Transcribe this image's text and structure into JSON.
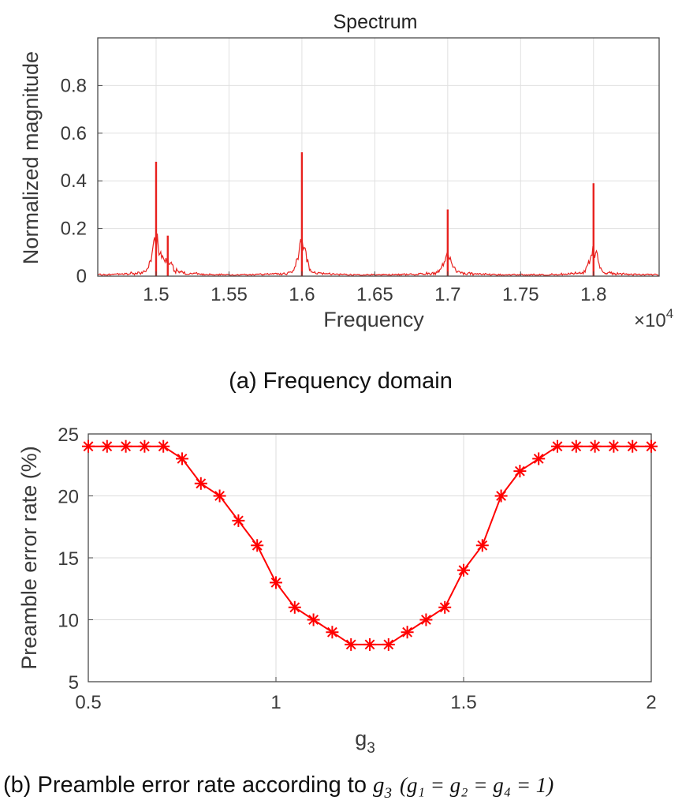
{
  "chart_data": [
    {
      "type": "line",
      "title": "Spectrum",
      "xlabel": "Frequency",
      "ylabel": "Normalized magnitude",
      "x_exponent_label": "×10",
      "x_exponent": "4",
      "xlim": [
        1.46,
        1.845
      ],
      "ylim": [
        0,
        1.0
      ],
      "x_ticks": [
        1.5,
        1.55,
        1.6,
        1.65,
        1.7,
        1.75,
        1.8
      ],
      "x_tick_labels": [
        "1.5",
        "1.55",
        "1.6",
        "1.65",
        "1.7",
        "1.75",
        "1.8"
      ],
      "y_ticks": [
        0,
        0.2,
        0.4,
        0.6,
        0.8
      ],
      "y_tick_labels": [
        "0",
        "0.2",
        "0.4",
        "0.6",
        "0.8"
      ],
      "grid": true,
      "color": "#e8211e",
      "peaks": [
        {
          "x": 1.5,
          "y": 0.48
        },
        {
          "x": 1.508,
          "y": 0.17
        },
        {
          "x": 1.6,
          "y": 0.52
        },
        {
          "x": 1.7,
          "y": 0.28
        },
        {
          "x": 1.8,
          "y": 0.39
        }
      ],
      "caption": "(a) Frequency domain"
    },
    {
      "type": "line",
      "xlabel": "g",
      "xlabel_sub": "3",
      "ylabel": "Preamble error rate (%)",
      "xlim": [
        0.5,
        2
      ],
      "ylim": [
        5,
        25
      ],
      "x_ticks": [
        0.5,
        1,
        1.5,
        2
      ],
      "x_tick_labels": [
        "0.5",
        "1",
        "1.5",
        "2"
      ],
      "y_ticks": [
        5,
        10,
        15,
        20,
        25
      ],
      "y_tick_labels": [
        "5",
        "10",
        "15",
        "20",
        "25"
      ],
      "grid": true,
      "color": "#ff0000",
      "marker": "*",
      "series": [
        {
          "name": "Preamble error rate",
          "x": [
            0.5,
            0.55,
            0.6,
            0.65,
            0.7,
            0.75,
            0.8,
            0.85,
            0.9,
            0.95,
            1.0,
            1.05,
            1.1,
            1.15,
            1.2,
            1.25,
            1.3,
            1.35,
            1.4,
            1.45,
            1.5,
            1.55,
            1.6,
            1.65,
            1.7,
            1.75,
            1.8,
            1.85,
            1.9,
            1.95,
            2.0
          ],
          "y": [
            24,
            24,
            24,
            24,
            24,
            23,
            21,
            20,
            18,
            16,
            13,
            11,
            10,
            9,
            8,
            8,
            8,
            9,
            10,
            11,
            14,
            16,
            20,
            22,
            23,
            24,
            24,
            24,
            24,
            24,
            24
          ]
        }
      ],
      "caption_prefix": "(b) Preamble error rate according to",
      "caption_var": "g",
      "caption_var_sub": "3",
      "caption_cond": "(g₁ = g₂ = g₄ = 1)"
    }
  ]
}
